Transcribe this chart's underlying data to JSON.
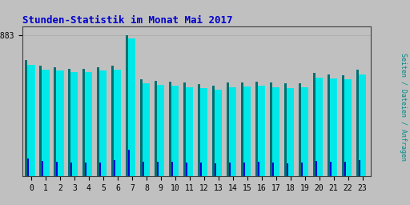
{
  "title": "Stunden-Statistik im Monat Mai 2017",
  "title_color": "#0000cc",
  "right_label": "Seiten / Dateien / Anfragen",
  "right_label_color": "#008888",
  "background_color": "#c0c0c0",
  "plot_bg_color": "#c0c0c0",
  "hours": [
    0,
    1,
    2,
    3,
    4,
    5,
    6,
    7,
    8,
    9,
    10,
    11,
    12,
    13,
    14,
    15,
    16,
    17,
    18,
    19,
    20,
    21,
    22,
    23
  ],
  "seiten": [
    1550,
    1480,
    1460,
    1440,
    1440,
    1460,
    1480,
    1883,
    1300,
    1270,
    1260,
    1250,
    1230,
    1215,
    1250,
    1255,
    1265,
    1250,
    1240,
    1245,
    1380,
    1360,
    1350,
    1420
  ],
  "dateien": [
    1490,
    1430,
    1410,
    1390,
    1390,
    1410,
    1430,
    1840,
    1245,
    1220,
    1210,
    1190,
    1175,
    1155,
    1190,
    1195,
    1210,
    1190,
    1178,
    1185,
    1318,
    1303,
    1293,
    1363
  ],
  "anfragen": [
    240,
    205,
    198,
    188,
    185,
    188,
    218,
    360,
    195,
    190,
    190,
    182,
    188,
    172,
    182,
    188,
    192,
    182,
    178,
    182,
    208,
    198,
    198,
    218
  ],
  "color_seiten": "#007070",
  "color_dateien": "#00e8e8",
  "color_anfragen": "#0000dd",
  "ymax": 2000,
  "ytick_val": 1883,
  "grid_color": "#b0b0b0",
  "border_color": "#404040",
  "tick_fontsize": 7,
  "title_fontsize": 9,
  "group_width": 0.85
}
